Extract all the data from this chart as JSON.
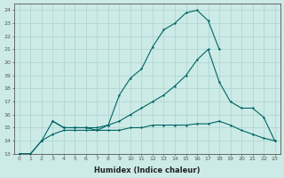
{
  "xlabel": "Humidex (Indice chaleur)",
  "bg_color": "#cceae6",
  "grid_color": "#aad4d0",
  "line_color": "#006666",
  "xlim": [
    -0.5,
    23.5
  ],
  "ylim": [
    13,
    24.5
  ],
  "xticks": [
    0,
    1,
    2,
    3,
    4,
    5,
    6,
    7,
    8,
    9,
    10,
    11,
    12,
    13,
    14,
    15,
    16,
    17,
    18,
    19,
    20,
    21,
    22,
    23
  ],
  "yticks": [
    13,
    14,
    15,
    16,
    17,
    18,
    19,
    20,
    21,
    22,
    23,
    24
  ],
  "curve1_x": [
    0,
    1,
    2,
    3,
    4,
    5,
    6,
    7,
    8,
    9,
    10,
    11,
    12,
    13,
    14,
    15,
    16,
    17,
    18
  ],
  "curve1_y": [
    13,
    13,
    14,
    15.5,
    15.0,
    15.0,
    15.0,
    15.0,
    15.2,
    17.5,
    18.8,
    19.5,
    21.2,
    22.5,
    23.0,
    23.8,
    24.0,
    23.2,
    21.0
  ],
  "curve2_x": [
    3,
    4,
    5,
    6,
    7,
    8,
    9,
    10,
    11,
    12,
    13,
    14,
    15,
    16,
    17,
    18,
    19,
    20,
    21,
    22,
    23
  ],
  "curve2_y": [
    15.5,
    15.0,
    15.0,
    15.0,
    14.8,
    15.2,
    15.5,
    16.0,
    16.5,
    17.0,
    17.5,
    18.2,
    19.0,
    20.2,
    21.0,
    18.5,
    17.0,
    16.5,
    16.5,
    15.8,
    14.0
  ],
  "curve3_x": [
    0,
    1,
    2,
    3,
    4,
    5,
    6,
    7,
    8,
    9,
    10,
    11,
    12,
    13,
    14,
    15,
    16,
    17,
    18,
    19,
    20,
    21,
    22,
    23
  ],
  "curve3_y": [
    13,
    13,
    14,
    14.5,
    14.8,
    14.8,
    14.8,
    14.8,
    14.8,
    14.8,
    15.0,
    15.0,
    15.2,
    15.2,
    15.2,
    15.2,
    15.3,
    15.3,
    15.5,
    15.2,
    14.8,
    14.5,
    14.2,
    14.0
  ]
}
